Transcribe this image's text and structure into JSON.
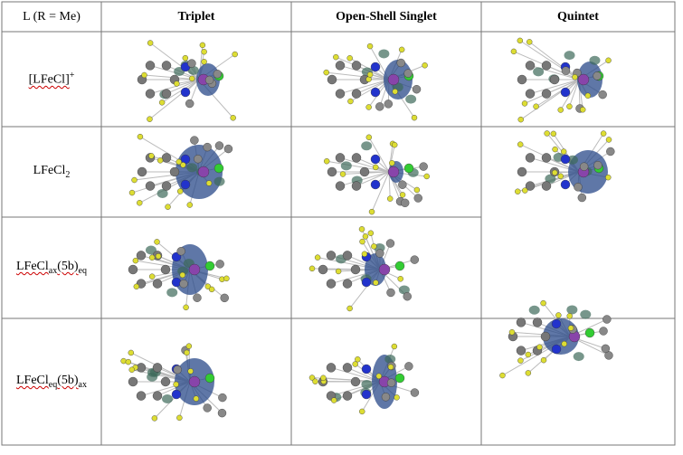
{
  "table": {
    "header": [
      "L (R = Me)",
      "Triplet",
      "Open-Shell Singlet",
      "Quintet"
    ],
    "rows": [
      {
        "label": [
          "[LFeCl]",
          "+"
        ]
      },
      {
        "label": [
          "LFeCl",
          "2"
        ]
      },
      {
        "label": [
          "LFeCl",
          "ax",
          "(5b)",
          "eq"
        ]
      },
      {
        "label": [
          "LFeCl",
          "eq",
          "(5b)",
          "ax"
        ]
      }
    ]
  }
}
